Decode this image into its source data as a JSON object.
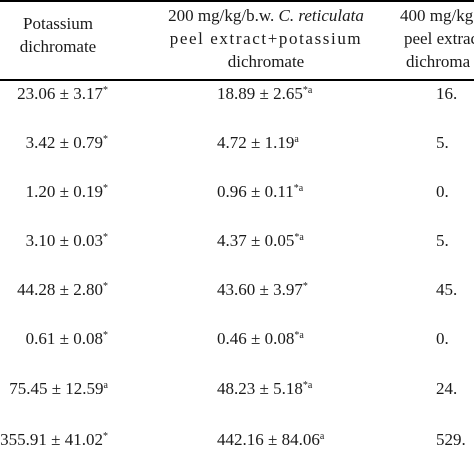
{
  "header": {
    "col1": [
      "Potassium",
      "dichromate"
    ],
    "col2_line1_prefix": "200 mg/kg/b.w. ",
    "col2_line1_species": "C. reticulata",
    "col2_line2": "peel extract+potassium",
    "col2_line3": "dichromate",
    "col3_line1": "400 mg/kg",
    "col3_line2": "peel extrac",
    "col3_line3": "dichroma"
  },
  "rows": [
    {
      "c1": "23.06 ± 3.17",
      "c1_sup": "*",
      "c2": "18.89 ± 2.65",
      "c2_sup": "*a",
      "c3": "16."
    },
    {
      "c1": "3.42 ± 0.79",
      "c1_sup": "*",
      "c2": "4.72 ± 1.19",
      "c2_sup": "a",
      "c3": "5."
    },
    {
      "c1": "1.20 ± 0.19",
      "c1_sup": "*",
      "c2": "0.96 ± 0.11",
      "c2_sup": "*a",
      "c3": "0."
    },
    {
      "c1": "3.10 ± 0.03",
      "c1_sup": "*",
      "c2": "4.37 ± 0.05",
      "c2_sup": "*a",
      "c3": "5."
    },
    {
      "c1": "44.28 ± 2.80",
      "c1_sup": "*",
      "c2": "43.60 ± 3.97",
      "c2_sup": "*",
      "c3": "45."
    },
    {
      "c1": "0.61 ± 0.08",
      "c1_sup": "*",
      "c2": "0.46 ± 0.08",
      "c2_sup": "*a",
      "c3": "0."
    },
    {
      "c1": "75.45 ± 12.59",
      "c1_sup": "a",
      "c2": "48.23 ± 5.18",
      "c2_sup": "*a",
      "c3": "24."
    },
    {
      "c1": "355.91 ± 41.02",
      "c1_sup": "*",
      "c2": "442.16 ± 84.06",
      "c2_sup": "a",
      "c3": "529."
    }
  ]
}
